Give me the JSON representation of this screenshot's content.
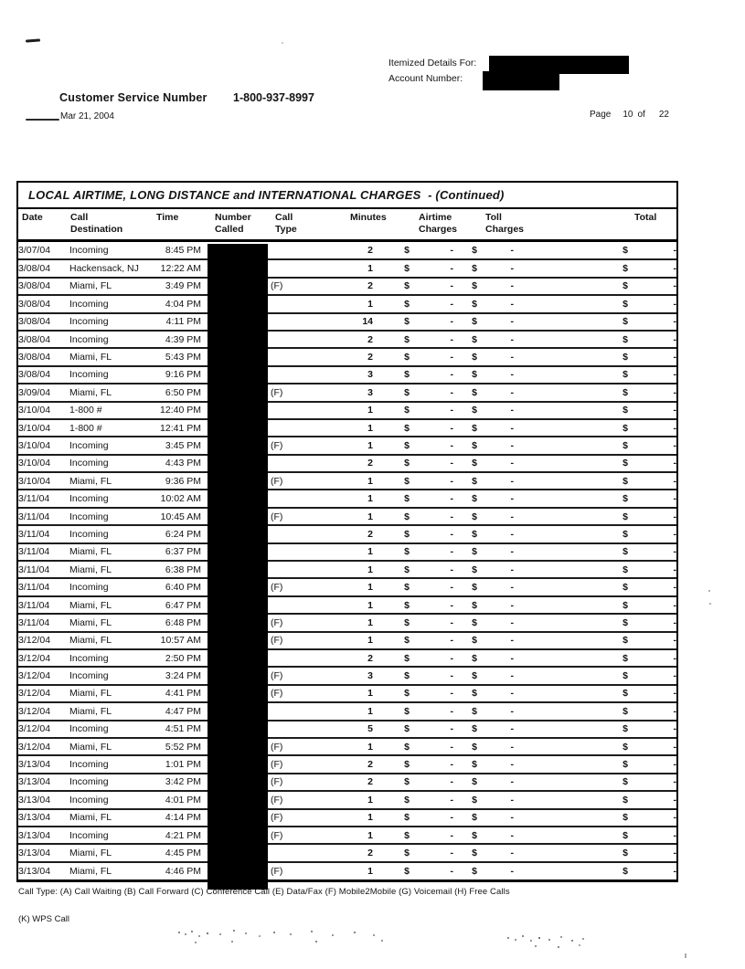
{
  "header": {
    "itemized_label": "Itemized Details For:",
    "account_label": "Account Number:",
    "customer_service_label": "Customer Service Number",
    "customer_service_number": "1-800-937-8997",
    "statement_date": "Mar 21, 2004",
    "page_label": "Page",
    "page_number": "10",
    "page_of": "of",
    "page_total": "22"
  },
  "table": {
    "title": "LOCAL AIRTIME, LONG DISTANCE and INTERNATIONAL CHARGES  - (Continued)",
    "columns": [
      "Date",
      "Call\nDestination",
      "Time",
      "Number\nCalled",
      "Call\nType",
      "Minutes",
      "Airtime\nCharges",
      "Toll\nCharges",
      "Total"
    ],
    "currency_symbol": "$",
    "empty_amount": "-",
    "rows": [
      {
        "date": "3/07/04",
        "destination": "Incoming",
        "time": "8:45 PM",
        "call_type": "",
        "minutes": "2"
      },
      {
        "date": "3/08/04",
        "destination": "Hackensack, NJ",
        "time": "12:22 AM",
        "call_type": "",
        "minutes": "1"
      },
      {
        "date": "3/08/04",
        "destination": "Miami, FL",
        "time": "3:49 PM",
        "call_type": "(F)",
        "minutes": "2"
      },
      {
        "date": "3/08/04",
        "destination": "Incoming",
        "time": "4:04 PM",
        "call_type": "",
        "minutes": "1"
      },
      {
        "date": "3/08/04",
        "destination": "Incoming",
        "time": "4:11 PM",
        "call_type": "",
        "minutes": "14"
      },
      {
        "date": "3/08/04",
        "destination": "Incoming",
        "time": "4:39 PM",
        "call_type": "",
        "minutes": "2"
      },
      {
        "date": "3/08/04",
        "destination": "Miami, FL",
        "time": "5:43 PM",
        "call_type": "",
        "minutes": "2"
      },
      {
        "date": "3/08/04",
        "destination": "Incoming",
        "time": "9:16 PM",
        "call_type": "",
        "minutes": "3"
      },
      {
        "date": "3/09/04",
        "destination": "Miami, FL",
        "time": "6:50 PM",
        "call_type": "(F)",
        "minutes": "3"
      },
      {
        "date": "3/10/04",
        "destination": "1-800 #",
        "time": "12:40 PM",
        "call_type": "",
        "minutes": "1"
      },
      {
        "date": "3/10/04",
        "destination": "1-800 #",
        "time": "12:41 PM",
        "call_type": "",
        "minutes": "1"
      },
      {
        "date": "3/10/04",
        "destination": "Incoming",
        "time": "3:45 PM",
        "call_type": "(F)",
        "minutes": "1"
      },
      {
        "date": "3/10/04",
        "destination": "Incoming",
        "time": "4:43 PM",
        "call_type": "",
        "minutes": "2"
      },
      {
        "date": "3/10/04",
        "destination": "Miami, FL",
        "time": "9:36 PM",
        "call_type": "(F)",
        "minutes": "1"
      },
      {
        "date": "3/11/04",
        "destination": "Incoming",
        "time": "10:02 AM",
        "call_type": "",
        "minutes": "1"
      },
      {
        "date": "3/11/04",
        "destination": "Incoming",
        "time": "10:45 AM",
        "call_type": "(F)",
        "minutes": "1"
      },
      {
        "date": "3/11/04",
        "destination": "Incoming",
        "time": "6:24 PM",
        "call_type": "",
        "minutes": "2"
      },
      {
        "date": "3/11/04",
        "destination": "Miami, FL",
        "time": "6:37 PM",
        "call_type": "",
        "minutes": "1"
      },
      {
        "date": "3/11/04",
        "destination": "Miami, FL",
        "time": "6:38 PM",
        "call_type": "",
        "minutes": "1"
      },
      {
        "date": "3/11/04",
        "destination": "Incoming",
        "time": "6:40 PM",
        "call_type": "(F)",
        "minutes": "1"
      },
      {
        "date": "3/11/04",
        "destination": "Miami, FL",
        "time": "6:47 PM",
        "call_type": "",
        "minutes": "1"
      },
      {
        "date": "3/11/04",
        "destination": "Miami, FL",
        "time": "6:48 PM",
        "call_type": "(F)",
        "minutes": "1"
      },
      {
        "date": "3/12/04",
        "destination": "Miami, FL",
        "time": "10:57 AM",
        "call_type": "(F)",
        "minutes": "1"
      },
      {
        "date": "3/12/04",
        "destination": "Incoming",
        "time": "2:50 PM",
        "call_type": "",
        "minutes": "2"
      },
      {
        "date": "3/12/04",
        "destination": "Incoming",
        "time": "3:24 PM",
        "call_type": "(F)",
        "minutes": "3"
      },
      {
        "date": "3/12/04",
        "destination": "Miami, FL",
        "time": "4:41 PM",
        "call_type": "(F)",
        "minutes": "1"
      },
      {
        "date": "3/12/04",
        "destination": "Miami, FL",
        "time": "4:47 PM",
        "call_type": "",
        "minutes": "1"
      },
      {
        "date": "3/12/04",
        "destination": "Incoming",
        "time": "4:51 PM",
        "call_type": "",
        "minutes": "5"
      },
      {
        "date": "3/12/04",
        "destination": "Miami, FL",
        "time": "5:52 PM",
        "call_type": "(F)",
        "minutes": "1"
      },
      {
        "date": "3/13/04",
        "destination": "Incoming",
        "time": "1:01 PM",
        "call_type": "(F)",
        "minutes": "2"
      },
      {
        "date": "3/13/04",
        "destination": "Incoming",
        "time": "3:42 PM",
        "call_type": "(F)",
        "minutes": "2"
      },
      {
        "date": "3/13/04",
        "destination": "Incoming",
        "time": "4:01 PM",
        "call_type": "(F)",
        "minutes": "1"
      },
      {
        "date": "3/13/04",
        "destination": "Miami, FL",
        "time": "4:14 PM",
        "call_type": "(F)",
        "minutes": "1"
      },
      {
        "date": "3/13/04",
        "destination": "Incoming",
        "time": "4:21 PM",
        "call_type": "(F)",
        "minutes": "1"
      },
      {
        "date": "3/13/04",
        "destination": "Miami, FL",
        "time": "4:45 PM",
        "call_type": "",
        "minutes": "2"
      },
      {
        "date": "3/13/04",
        "destination": "Miami, FL",
        "time": "4:46 PM",
        "call_type": "(F)",
        "minutes": "1"
      }
    ]
  },
  "footer": {
    "call_type_legend": "Call Type: (A) Call Waiting (B) Call Forward (C) Conference Call (E) Data/Fax (F) Mobile2Mobile (G) Voicemail (H) Free Calls",
    "wps_legend": "(K) WPS Call"
  },
  "colors": {
    "ink": "#141414",
    "redaction": "#000000",
    "paper": "#ffffff"
  }
}
